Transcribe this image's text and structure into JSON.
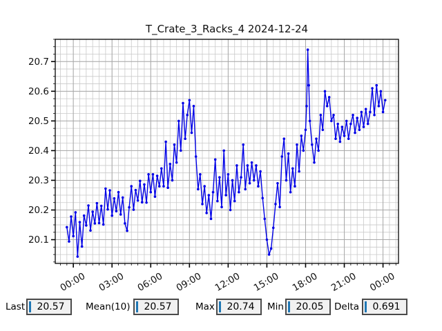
{
  "header": {
    "title": "T_Crate_3_Racks_4 2024-12-24"
  },
  "stats": {
    "cursor_color": "#1f77b4",
    "box_background": "#f1f1f1",
    "items": [
      {
        "label": "Last",
        "value": "20.57"
      },
      {
        "label": "Mean(10)",
        "value": "20.57"
      },
      {
        "label": "Max",
        "value": "20.74"
      },
      {
        "label": "Min",
        "value": "20.05"
      },
      {
        "label": "Delta",
        "value": "0.691"
      }
    ]
  },
  "chart_data": {
    "type": "line",
    "title": "T_Crate_3_Racks_4 2024-12-24",
    "series_name": "T_Crate_3_Racks_4",
    "date": "2024-12-24",
    "line_color": "#0000e6",
    "marker": "circle",
    "grid": "both",
    "legend": "none",
    "x_unit": "hours",
    "xlim": [
      -1.4,
      25.2
    ],
    "ylim": [
      20.02,
      20.775
    ],
    "minor_x_step": 0.5,
    "minor_y_step": 0.025,
    "x_ticks": [
      {
        "t": 0,
        "label": "00:00"
      },
      {
        "t": 3,
        "label": "03:00"
      },
      {
        "t": 6,
        "label": "06:00"
      },
      {
        "t": 9,
        "label": "09:00"
      },
      {
        "t": 12,
        "label": "12:00"
      },
      {
        "t": 15,
        "label": "15:00"
      },
      {
        "t": 18,
        "label": "18:00"
      },
      {
        "t": 21,
        "label": "21:00"
      },
      {
        "t": 24,
        "label": "00:00"
      }
    ],
    "y_ticks": [
      20.1,
      20.2,
      20.3,
      20.4,
      20.5,
      20.6,
      20.7
    ],
    "points": [
      [
        -0.5,
        20.142
      ],
      [
        -0.33,
        20.094
      ],
      [
        -0.17,
        20.178
      ],
      [
        0,
        20.112
      ],
      [
        0.17,
        20.192
      ],
      [
        0.33,
        20.043
      ],
      [
        0.5,
        20.159
      ],
      [
        0.67,
        20.077
      ],
      [
        0.83,
        20.181
      ],
      [
        1,
        20.148
      ],
      [
        1.17,
        20.215
      ],
      [
        1.33,
        20.131
      ],
      [
        1.5,
        20.194
      ],
      [
        1.67,
        20.155
      ],
      [
        1.83,
        20.223
      ],
      [
        2,
        20.156
      ],
      [
        2.17,
        20.214
      ],
      [
        2.33,
        20.151
      ],
      [
        2.5,
        20.272
      ],
      [
        2.67,
        20.202
      ],
      [
        2.83,
        20.266
      ],
      [
        3,
        20.181
      ],
      [
        3.17,
        20.239
      ],
      [
        3.33,
        20.196
      ],
      [
        3.5,
        20.26
      ],
      [
        3.67,
        20.185
      ],
      [
        3.83,
        20.242
      ],
      [
        4,
        20.155
      ],
      [
        4.17,
        20.13
      ],
      [
        4.33,
        20.209
      ],
      [
        4.5,
        20.28
      ],
      [
        4.67,
        20.201
      ],
      [
        4.83,
        20.267
      ],
      [
        5,
        20.232
      ],
      [
        5.17,
        20.298
      ],
      [
        5.33,
        20.226
      ],
      [
        5.5,
        20.286
      ],
      [
        5.67,
        20.225
      ],
      [
        5.83,
        20.32
      ],
      [
        6,
        20.26
      ],
      [
        6.17,
        20.32
      ],
      [
        6.33,
        20.245
      ],
      [
        6.5,
        20.315
      ],
      [
        6.67,
        20.28
      ],
      [
        6.83,
        20.34
      ],
      [
        7,
        20.28
      ],
      [
        7.17,
        20.43
      ],
      [
        7.33,
        20.275
      ],
      [
        7.5,
        20.355
      ],
      [
        7.67,
        20.3
      ],
      [
        7.83,
        20.42
      ],
      [
        8,
        20.36
      ],
      [
        8.17,
        20.5
      ],
      [
        8.33,
        20.4
      ],
      [
        8.5,
        20.56
      ],
      [
        8.67,
        20.44
      ],
      [
        8.83,
        20.52
      ],
      [
        9,
        20.57
      ],
      [
        9.17,
        20.46
      ],
      [
        9.33,
        20.55
      ],
      [
        9.5,
        20.38
      ],
      [
        9.67,
        20.27
      ],
      [
        9.83,
        20.32
      ],
      [
        10,
        20.22
      ],
      [
        10.17,
        20.28
      ],
      [
        10.33,
        20.19
      ],
      [
        10.5,
        20.25
      ],
      [
        10.67,
        20.17
      ],
      [
        10.83,
        20.26
      ],
      [
        11,
        20.37
      ],
      [
        11.17,
        20.23
      ],
      [
        11.33,
        20.31
      ],
      [
        11.5,
        20.21
      ],
      [
        11.67,
        20.4
      ],
      [
        11.83,
        20.25
      ],
      [
        12,
        20.32
      ],
      [
        12.17,
        20.2
      ],
      [
        12.33,
        20.3
      ],
      [
        12.5,
        20.23
      ],
      [
        12.67,
        20.35
      ],
      [
        12.83,
        20.26
      ],
      [
        13,
        20.31
      ],
      [
        13.17,
        20.42
      ],
      [
        13.33,
        20.27
      ],
      [
        13.5,
        20.35
      ],
      [
        13.67,
        20.29
      ],
      [
        13.83,
        20.36
      ],
      [
        14,
        20.3
      ],
      [
        14.17,
        20.35
      ],
      [
        14.33,
        20.28
      ],
      [
        14.5,
        20.33
      ],
      [
        14.67,
        20.24
      ],
      [
        14.83,
        20.17
      ],
      [
        15,
        20.1
      ],
      [
        15.17,
        20.05
      ],
      [
        15.33,
        20.07
      ],
      [
        15.5,
        20.14
      ],
      [
        15.67,
        20.22
      ],
      [
        15.83,
        20.29
      ],
      [
        16,
        20.21
      ],
      [
        16.17,
        20.38
      ],
      [
        16.33,
        20.44
      ],
      [
        16.5,
        20.3
      ],
      [
        16.67,
        20.39
      ],
      [
        16.83,
        20.26
      ],
      [
        17,
        20.34
      ],
      [
        17.17,
        20.28
      ],
      [
        17.33,
        20.42
      ],
      [
        17.5,
        20.33
      ],
      [
        17.67,
        20.45
      ],
      [
        17.83,
        20.4
      ],
      [
        18,
        20.47
      ],
      [
        18.08,
        20.55
      ],
      [
        18.17,
        20.74
      ],
      [
        18.25,
        20.62
      ],
      [
        18.33,
        20.5
      ],
      [
        18.5,
        20.42
      ],
      [
        18.67,
        20.36
      ],
      [
        18.83,
        20.44
      ],
      [
        19,
        20.4
      ],
      [
        19.17,
        20.52
      ],
      [
        19.33,
        20.47
      ],
      [
        19.5,
        20.6
      ],
      [
        19.67,
        20.55
      ],
      [
        19.83,
        20.58
      ],
      [
        20,
        20.5
      ],
      [
        20.17,
        20.52
      ],
      [
        20.33,
        20.44
      ],
      [
        20.5,
        20.49
      ],
      [
        20.67,
        20.43
      ],
      [
        20.83,
        20.48
      ],
      [
        21,
        20.45
      ],
      [
        21.17,
        20.5
      ],
      [
        21.33,
        20.44
      ],
      [
        21.5,
        20.49
      ],
      [
        21.67,
        20.52
      ],
      [
        21.83,
        20.46
      ],
      [
        22,
        20.51
      ],
      [
        22.17,
        20.47
      ],
      [
        22.33,
        20.53
      ],
      [
        22.5,
        20.48
      ],
      [
        22.67,
        20.54
      ],
      [
        22.83,
        20.49
      ],
      [
        23,
        20.53
      ],
      [
        23.17,
        20.61
      ],
      [
        23.33,
        20.52
      ],
      [
        23.5,
        20.62
      ],
      [
        23.67,
        20.55
      ],
      [
        23.83,
        20.6
      ],
      [
        24,
        20.53
      ],
      [
        24.17,
        20.57
      ]
    ]
  }
}
